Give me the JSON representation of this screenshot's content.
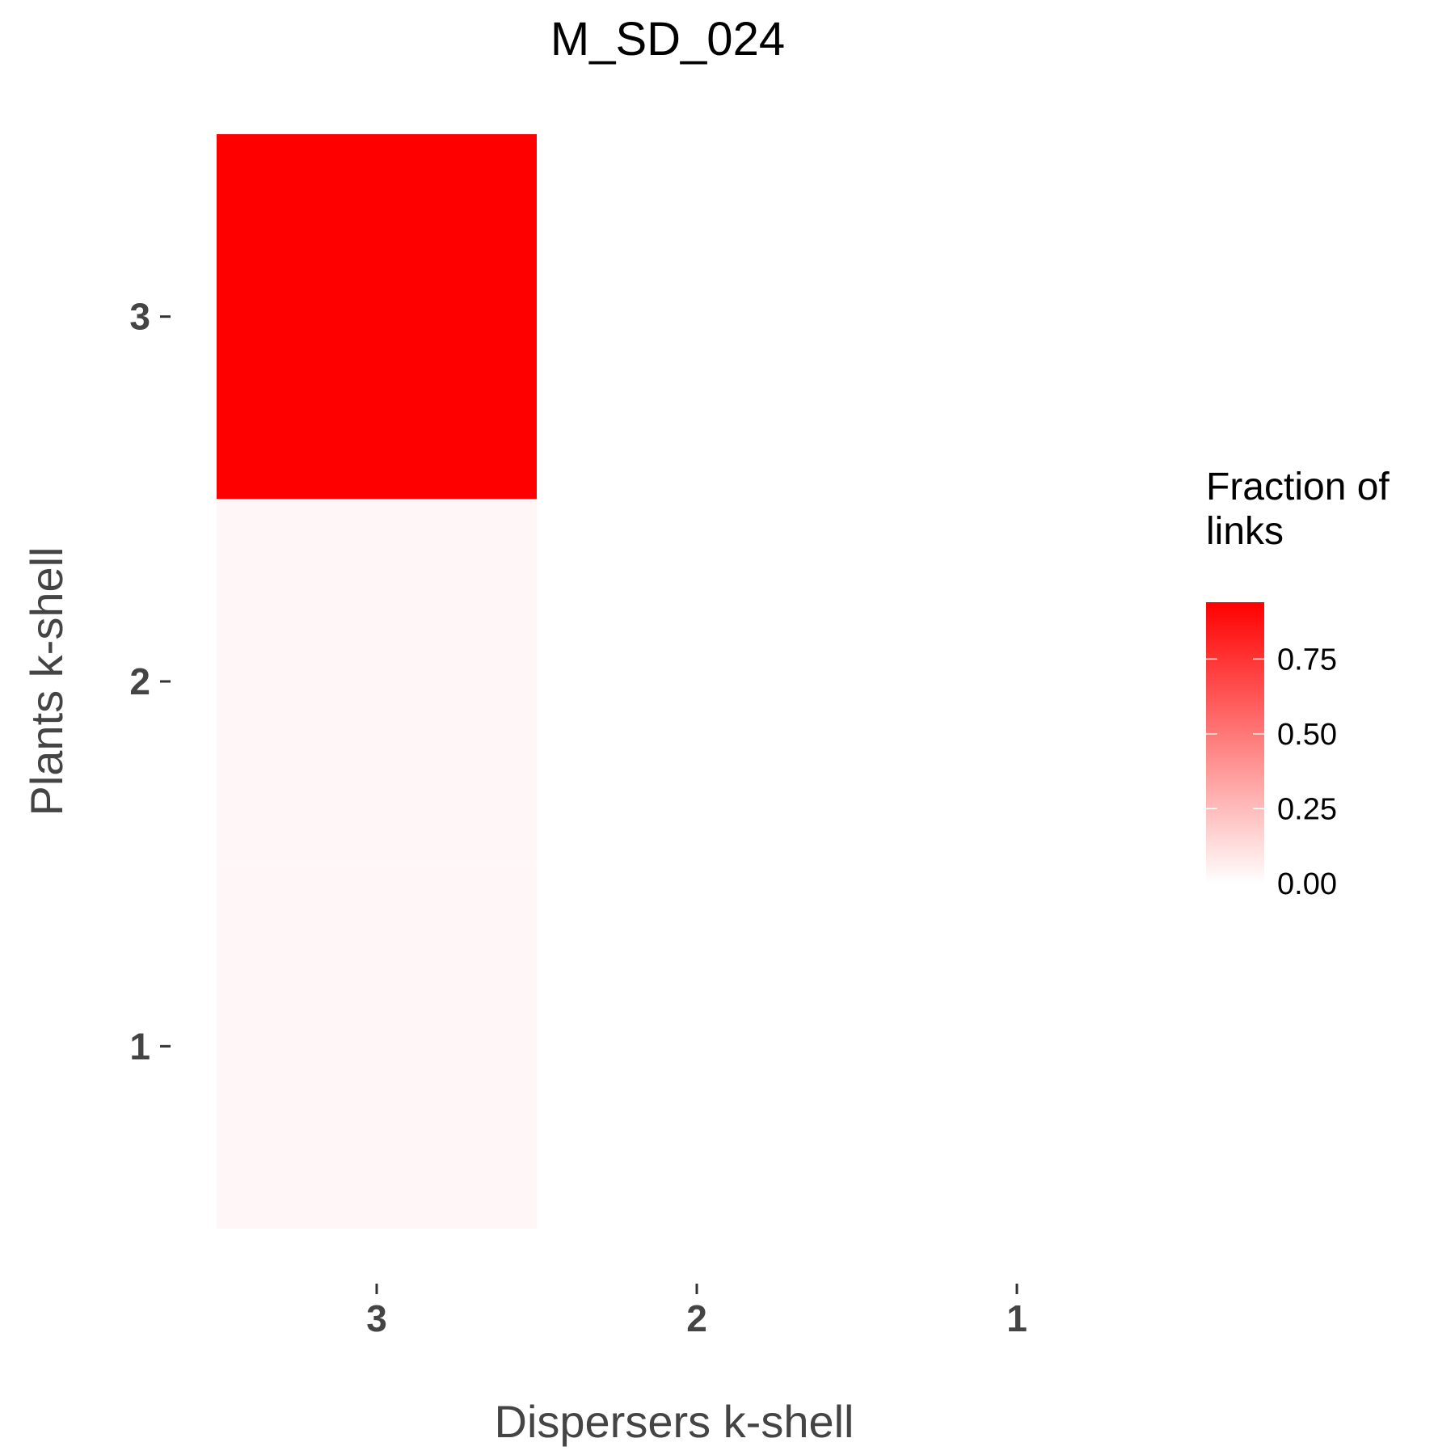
{
  "chart_data": {
    "type": "heatmap",
    "title": "M_SD_024",
    "xlabel": "Dispersers k-shell",
    "ylabel": "Plants k-shell",
    "x_categories": [
      "3",
      "2",
      "1"
    ],
    "y_categories": [
      "3",
      "2",
      "1"
    ],
    "cells": [
      {
        "x": "3",
        "y": "3",
        "value": 0.94
      },
      {
        "x": "3",
        "y": "2",
        "value": 0.03
      },
      {
        "x": "3",
        "y": "1",
        "value": 0.03
      }
    ],
    "legend": {
      "title_lines": [
        "Fraction of",
        "links"
      ],
      "ticks": [
        {
          "value": 0.75,
          "label": "0.75"
        },
        {
          "value": 0.5,
          "label": "0.50"
        },
        {
          "value": 0.25,
          "label": "0.25"
        },
        {
          "value": 0.0,
          "label": "0.00"
        }
      ],
      "range": [
        0,
        0.94
      ],
      "placement": "right"
    },
    "color_low": "#ffffff",
    "color_high": "#ff0000",
    "grid": false
  }
}
